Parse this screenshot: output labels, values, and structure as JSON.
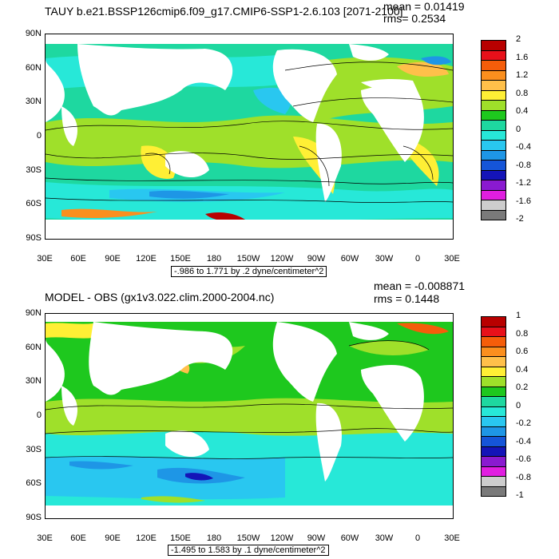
{
  "panels": [
    {
      "title": "TAUY b.e21.BSSP126cmip6.f09_g17.CMIP6-SSP1-2.6.103 [2071-2100]",
      "mean": "mean = 0.01419",
      "rms": "rms= 0.2534",
      "range": "-.986 to 1.771 by .2 dyne/centimeter^2",
      "colorbar": [
        "2",
        "1.6",
        "1.2",
        "0.8",
        "0.4",
        "0",
        "-0.4",
        "-0.8",
        "-1.2",
        "-1.6",
        "-2"
      ],
      "colors": [
        "#b80000",
        "#e8101a",
        "#f55d0a",
        "#fb8f1e",
        "#ffc04a",
        "#ffef35",
        "#9fe02a",
        "#1ec81e",
        "#1ed8a0",
        "#27e8d8",
        "#29c7f0",
        "#1e96e6",
        "#1555d8",
        "#1414b8",
        "#8a1ad0",
        "#e01ee0",
        "#cdcdcd",
        "#7a7a7a"
      ]
    },
    {
      "title": "MODEL - OBS (gx1v3.022.clim.2000-2004.nc)",
      "mean": "mean = -0.008871",
      "rms": "rms = 0.1448",
      "range": "-1.495 to 1.583 by .1 dyne/centimeter^2",
      "colorbar": [
        "1",
        "0.8",
        "0.6",
        "0.4",
        "0.2",
        "0",
        "-0.2",
        "-0.4",
        "-0.6",
        "-0.8",
        "-1"
      ],
      "colors": [
        "#b80000",
        "#e8101a",
        "#f55d0a",
        "#fb8f1e",
        "#ffc04a",
        "#ffef35",
        "#9fe02a",
        "#1ec81e",
        "#1ed8a0",
        "#27e8d8",
        "#29c7f0",
        "#1e96e6",
        "#1555d8",
        "#1414b8",
        "#8a1ad0",
        "#e01ee0",
        "#cdcdcd",
        "#7a7a7a"
      ]
    }
  ],
  "lat_labels": [
    "90N",
    "60N",
    "30N",
    "0",
    "30S",
    "60S",
    "90S"
  ],
  "lon_labels": [
    "30E",
    "60E",
    "90E",
    "120E",
    "150E",
    "180",
    "150W",
    "120W",
    "90W",
    "60W",
    "30W",
    "0",
    "30E"
  ]
}
